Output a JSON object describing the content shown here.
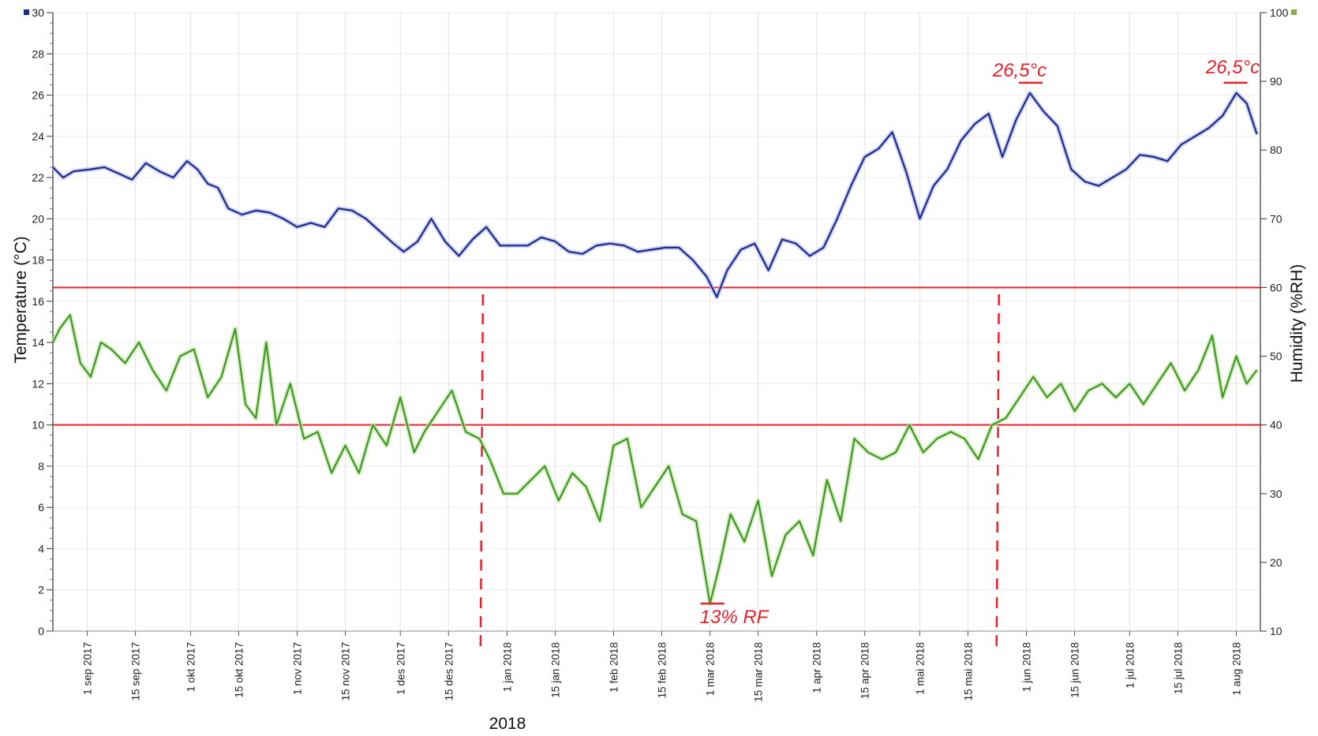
{
  "chart_data": {
    "type": "line",
    "title": "",
    "xlabel": "",
    "year_label": "2018",
    "ylabel": "Temperature (°C)",
    "ylabel_right": "Humidity (%RH)",
    "ylim": [
      0,
      30
    ],
    "ylim_right": [
      10,
      100
    ],
    "yticks": [
      "0",
      "2",
      "4",
      "6",
      "8",
      "10",
      "12",
      "14",
      "16",
      "18",
      "20",
      "22",
      "24",
      "26",
      "28",
      "30"
    ],
    "yticks_right": [
      "10",
      "20",
      "30",
      "40",
      "50",
      "60",
      "70",
      "80",
      "90",
      "100"
    ],
    "grid": true,
    "x_start": "2017-08-22",
    "x_end": "2018-08-08",
    "x_ticks": [
      {
        "label": "1 sep 2017",
        "date": "2017-09-01"
      },
      {
        "label": "15 sep 2017",
        "date": "2017-09-15"
      },
      {
        "label": "1 okt 2017",
        "date": "2017-10-01"
      },
      {
        "label": "15 okt 2017",
        "date": "2017-10-15"
      },
      {
        "label": "1 nov 2017",
        "date": "2017-11-01"
      },
      {
        "label": "15 nov 2017",
        "date": "2017-11-15"
      },
      {
        "label": "1 des 2017",
        "date": "2017-12-01"
      },
      {
        "label": "15 des 2017",
        "date": "2017-12-15"
      },
      {
        "label": "1 jan 2018",
        "date": "2018-01-01"
      },
      {
        "label": "15 jan 2018",
        "date": "2018-01-15"
      },
      {
        "label": "1 feb 2018",
        "date": "2018-02-01"
      },
      {
        "label": "15 feb 2018",
        "date": "2018-02-15"
      },
      {
        "label": "1 mar 2018",
        "date": "2018-03-01"
      },
      {
        "label": "15 mar 2018",
        "date": "2018-03-15"
      },
      {
        "label": "1 apr 2018",
        "date": "2018-04-01"
      },
      {
        "label": "15 apr 2018",
        "date": "2018-04-15"
      },
      {
        "label": "1 mai 2018",
        "date": "2018-05-01"
      },
      {
        "label": "15 mai 2018",
        "date": "2018-05-15"
      },
      {
        "label": "1 jun 2018",
        "date": "2018-06-01"
      },
      {
        "label": "15 jun 2018",
        "date": "2018-06-15"
      },
      {
        "label": "1 jul 2018",
        "date": "2018-07-01"
      },
      {
        "label": "15 jul 2018",
        "date": "2018-07-15"
      },
      {
        "label": "1 aug 2018",
        "date": "2018-08-01"
      }
    ],
    "series": [
      {
        "axis": "left",
        "color": "#1b2a8c",
        "x": [
          "2017-08-22",
          "2017-08-25",
          "2017-08-28",
          "2017-09-02",
          "2017-09-06",
          "2017-09-10",
          "2017-09-14",
          "2017-09-18",
          "2017-09-22",
          "2017-09-26",
          "2017-09-30",
          "2017-10-03",
          "2017-10-06",
          "2017-10-09",
          "2017-10-12",
          "2017-10-16",
          "2017-10-20",
          "2017-10-24",
          "2017-10-28",
          "2017-11-01",
          "2017-11-05",
          "2017-11-09",
          "2017-11-13",
          "2017-11-17",
          "2017-11-21",
          "2017-11-25",
          "2017-11-29",
          "2017-12-02",
          "2017-12-06",
          "2017-12-10",
          "2017-12-14",
          "2017-12-18",
          "2017-12-22",
          "2017-12-26",
          "2017-12-30",
          "2018-01-03",
          "2018-01-07",
          "2018-01-11",
          "2018-01-15",
          "2018-01-19",
          "2018-01-23",
          "2018-01-27",
          "2018-01-31",
          "2018-02-04",
          "2018-02-08",
          "2018-02-12",
          "2018-02-16",
          "2018-02-20",
          "2018-02-24",
          "2018-02-28",
          "2018-03-03",
          "2018-03-06",
          "2018-03-10",
          "2018-03-14",
          "2018-03-18",
          "2018-03-22",
          "2018-03-26",
          "2018-03-30",
          "2018-04-03",
          "2018-04-07",
          "2018-04-11",
          "2018-04-15",
          "2018-04-19",
          "2018-04-23",
          "2018-04-27",
          "2018-05-01",
          "2018-05-05",
          "2018-05-09",
          "2018-05-13",
          "2018-05-17",
          "2018-05-21",
          "2018-05-25",
          "2018-05-29",
          "2018-06-02",
          "2018-06-06",
          "2018-06-10",
          "2018-06-14",
          "2018-06-18",
          "2018-06-22",
          "2018-06-26",
          "2018-06-30",
          "2018-07-04",
          "2018-07-08",
          "2018-07-12",
          "2018-07-16",
          "2018-07-20",
          "2018-07-24",
          "2018-07-28",
          "2018-08-01",
          "2018-08-04",
          "2018-08-07"
        ],
        "values": [
          22.5,
          22.0,
          22.3,
          22.4,
          22.5,
          22.2,
          21.9,
          22.7,
          22.3,
          22.0,
          22.8,
          22.4,
          21.7,
          21.5,
          20.5,
          20.2,
          20.4,
          20.3,
          20.0,
          19.6,
          19.8,
          19.6,
          20.5,
          20.4,
          20.0,
          19.4,
          18.8,
          18.4,
          18.9,
          20.0,
          18.9,
          18.2,
          19.0,
          19.6,
          18.7,
          18.7,
          18.7,
          19.1,
          18.9,
          18.4,
          18.3,
          18.7,
          18.8,
          18.7,
          18.4,
          18.5,
          18.6,
          18.6,
          18.0,
          17.2,
          16.2,
          17.5,
          18.5,
          18.8,
          17.5,
          19.0,
          18.8,
          18.2,
          18.6,
          20.0,
          21.6,
          23.0,
          23.4,
          24.2,
          22.3,
          20.0,
          21.6,
          22.4,
          23.8,
          24.6,
          25.1,
          23.0,
          24.8,
          26.1,
          25.2,
          24.5,
          22.4,
          21.8,
          21.6,
          22.0,
          22.4,
          23.1,
          23.0,
          22.8,
          23.6,
          24.0,
          24.4,
          25.0,
          26.1,
          25.6,
          24.1
        ]
      },
      {
        "axis": "right",
        "color": "#3a9a25",
        "x": [
          "2017-08-22",
          "2017-08-24",
          "2017-08-27",
          "2017-08-30",
          "2017-09-02",
          "2017-09-05",
          "2017-09-08",
          "2017-09-12",
          "2017-09-16",
          "2017-09-20",
          "2017-09-24",
          "2017-09-28",
          "2017-10-02",
          "2017-10-06",
          "2017-10-10",
          "2017-10-14",
          "2017-10-17",
          "2017-10-20",
          "2017-10-23",
          "2017-10-26",
          "2017-10-30",
          "2017-11-03",
          "2017-11-07",
          "2017-11-11",
          "2017-11-15",
          "2017-11-19",
          "2017-11-23",
          "2017-11-27",
          "2017-12-01",
          "2017-12-05",
          "2017-12-08",
          "2017-12-12",
          "2017-12-16",
          "2017-12-20",
          "2017-12-24",
          "2017-12-27",
          "2017-12-31",
          "2018-01-04",
          "2018-01-08",
          "2018-01-12",
          "2018-01-16",
          "2018-01-20",
          "2018-01-24",
          "2018-01-28",
          "2018-02-01",
          "2018-02-05",
          "2018-02-09",
          "2018-02-13",
          "2018-02-17",
          "2018-02-21",
          "2018-02-25",
          "2018-03-01",
          "2018-03-04",
          "2018-03-07",
          "2018-03-11",
          "2018-03-15",
          "2018-03-19",
          "2018-03-23",
          "2018-03-27",
          "2018-03-31",
          "2018-04-04",
          "2018-04-08",
          "2018-04-12",
          "2018-04-16",
          "2018-04-20",
          "2018-04-24",
          "2018-04-28",
          "2018-05-02",
          "2018-05-06",
          "2018-05-10",
          "2018-05-14",
          "2018-05-18",
          "2018-05-22",
          "2018-05-26",
          "2018-05-30",
          "2018-06-03",
          "2018-06-07",
          "2018-06-11",
          "2018-06-15",
          "2018-06-19",
          "2018-06-23",
          "2018-06-27",
          "2018-07-01",
          "2018-07-05",
          "2018-07-09",
          "2018-07-13",
          "2018-07-17",
          "2018-07-21",
          "2018-07-25",
          "2018-07-28",
          "2018-08-01",
          "2018-08-04",
          "2018-08-07"
        ],
        "values": [
          52,
          54,
          56,
          49,
          47,
          52,
          51,
          49,
          52,
          48,
          45,
          50,
          51,
          44,
          47,
          54,
          43,
          41,
          52,
          40,
          46,
          38,
          39,
          33,
          37,
          33,
          40,
          37,
          44,
          36,
          39,
          42,
          45,
          39,
          38,
          35,
          30,
          30,
          32,
          34,
          29,
          33,
          31,
          26,
          37,
          38,
          28,
          31,
          34,
          27,
          26,
          14,
          20,
          27,
          23,
          29,
          18,
          24,
          26,
          21,
          32,
          26,
          38,
          36,
          35,
          36,
          40,
          36,
          38,
          39,
          38,
          35,
          40,
          41,
          44,
          47,
          44,
          46,
          42,
          45,
          46,
          44,
          46,
          43,
          46,
          49,
          45,
          48,
          53,
          44,
          50,
          46,
          48
        ]
      }
    ],
    "annotations": [
      {
        "text": "26,5°c",
        "target": "temperature peak 1 jun 2018"
      },
      {
        "text": "26,5°c",
        "target": "temperature peak 1 aug 2018"
      },
      {
        "text": "13% RF",
        "target": "humidity minimum 1 mar 2018"
      }
    ],
    "reference_lines": [
      {
        "axis": "right",
        "value": 60,
        "color": "#e8212b"
      },
      {
        "axis": "right",
        "value": 40,
        "color": "#e8212b"
      }
    ],
    "marker_dates": [
      "2017-12-25",
      "2018-05-24"
    ]
  }
}
